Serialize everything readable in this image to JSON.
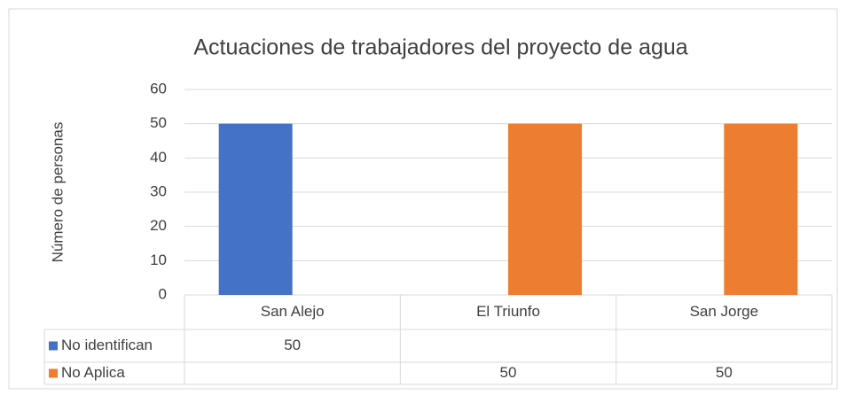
{
  "chart_data": {
    "type": "bar",
    "title": "Actuaciones de trabajadores del proyecto de agua",
    "y_label": "Número de personas",
    "categories": [
      "San Alejo",
      "El Triunfo",
      "San Jorge"
    ],
    "series": [
      {
        "name": "No identifican",
        "color": "#4472c4",
        "values": [
          50,
          null,
          null
        ]
      },
      {
        "name": "No Aplica",
        "color": "#ed7d31",
        "values": [
          null,
          50,
          50
        ]
      }
    ],
    "ylim": [
      0,
      60
    ],
    "yticks": [
      0,
      10,
      20,
      30,
      40,
      50,
      60
    ],
    "grid": true,
    "data_table": true
  }
}
